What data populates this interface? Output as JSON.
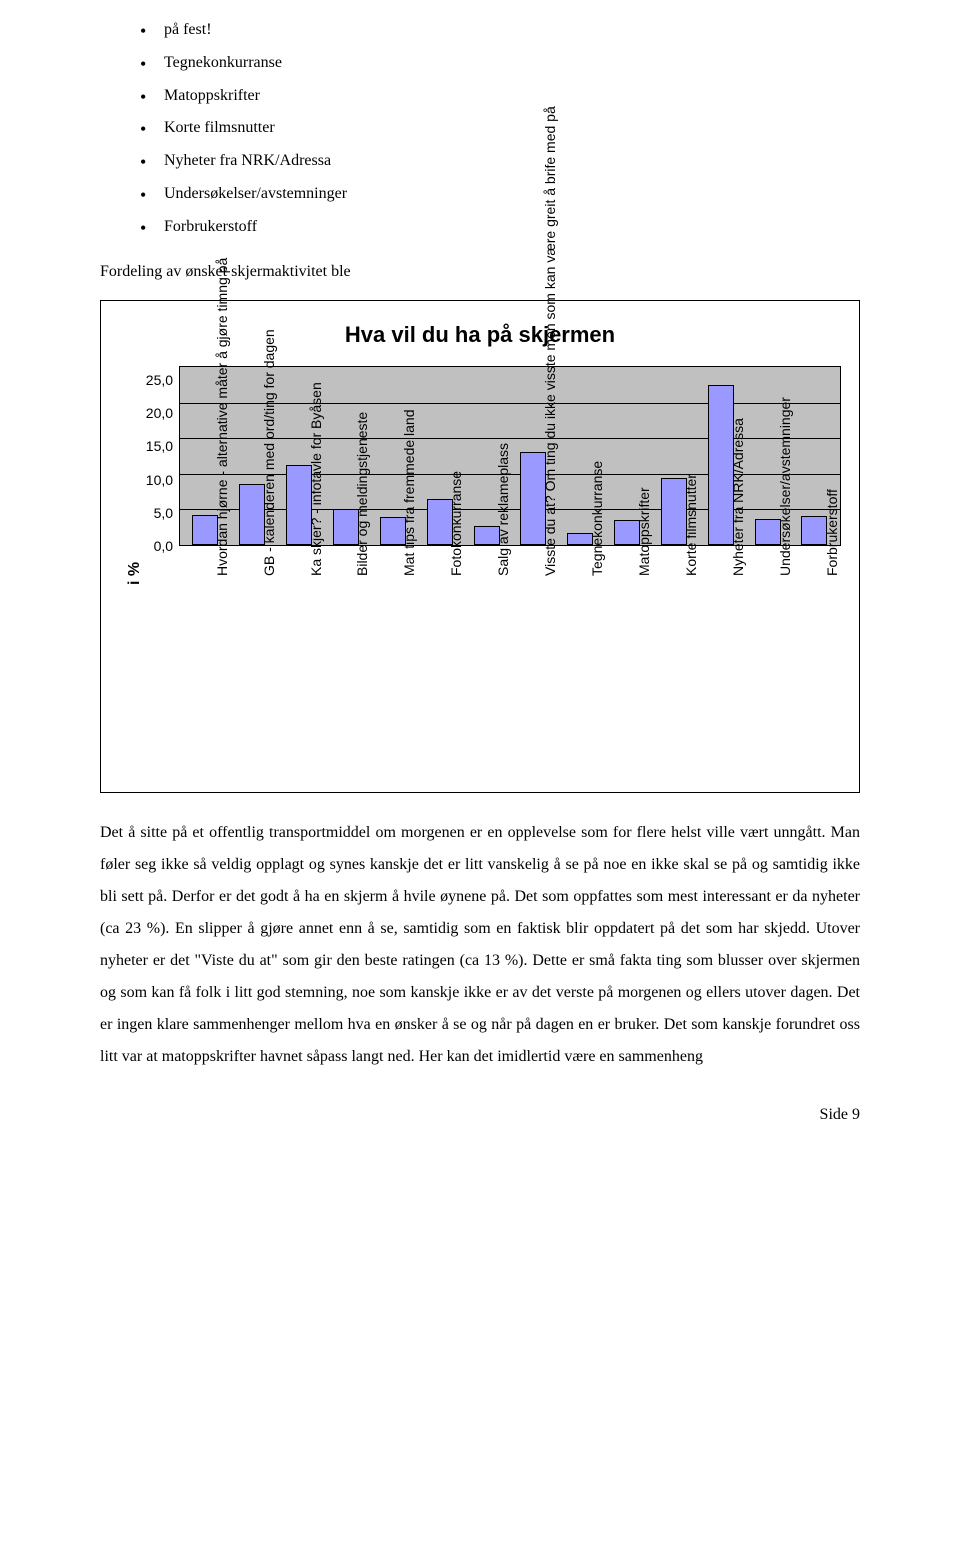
{
  "bullets": [
    "på fest!",
    "Tegnekonkurranse",
    "Matoppskrifter",
    "Korte filmsnutter",
    "Nyheter fra NRK/Adressa",
    "Undersøkelser/avstemninger",
    "Forbrukerstoff"
  ],
  "intro": "Fordeling av ønsket skjermaktivitet ble",
  "chart": {
    "title": "Hva vil du ha på skjermen",
    "y_label": "i %",
    "y_ticks": [
      "25,0",
      "20,0",
      "15,0",
      "10,0",
      "5,0",
      "0,0"
    ],
    "y_max": 25.0,
    "grid_positions_pct": [
      20,
      40,
      60,
      80
    ],
    "plot_bg": "#c0c0c0",
    "bar_color": "#9999ff",
    "bar_border": "#000000",
    "categories": [
      "Hvordan hjørne - alternative måter å gjøre timng på",
      "GB - kalenderen med ord/ting for dagen",
      "Ka skjer? - infotavle for Byåsen",
      "Bilder og meldingstjeneste",
      "Mat tips fra fremmede land",
      "Fotokonkurranse",
      "Salg av reklameplass",
      "Visste du at? Om ting du ikke visste men som kan være greit å brife med på",
      "Tegnekonkurranse",
      "Matoppskrifter",
      "Korte filmsnutter",
      "Nyheter fra NRK/Adressa",
      "Undersøkelser/avstemninger",
      "Forbrukerstoff"
    ],
    "values": [
      4.2,
      8.5,
      11.2,
      5.0,
      4.0,
      6.5,
      2.6,
      13.0,
      1.7,
      3.5,
      9.4,
      22.5,
      3.7,
      4.1
    ]
  },
  "body": "Det å sitte på et offentlig transportmiddel om morgenen er en opplevelse som for flere helst ville vært unngått. Man føler seg ikke så veldig opplagt og synes kanskje det er litt vanskelig å se på noe en ikke skal se på og samtidig ikke bli sett på.  Derfor er det godt å ha en skjerm å hvile øynene på.  Det som oppfattes som mest interessant er da nyheter (ca 23 %).    En slipper å gjøre annet enn å se, samtidig som en faktisk blir oppdatert på det som har skjedd. Utover nyheter er det \"Viste du at\" som gir den beste ratingen (ca 13 %).  Dette er små fakta ting som blusser over skjermen og som kan få folk i litt god stemning, noe som kanskje ikke er av det verste på morgenen og ellers utover dagen. Det er ingen klare sammenhenger mellom hva en ønsker å se og når på dagen en er bruker. Det som kanskje forundret oss litt var at matoppskrifter havnet såpass langt ned. Her kan det imidlertid være en sammenheng",
  "footer": "Side 9"
}
